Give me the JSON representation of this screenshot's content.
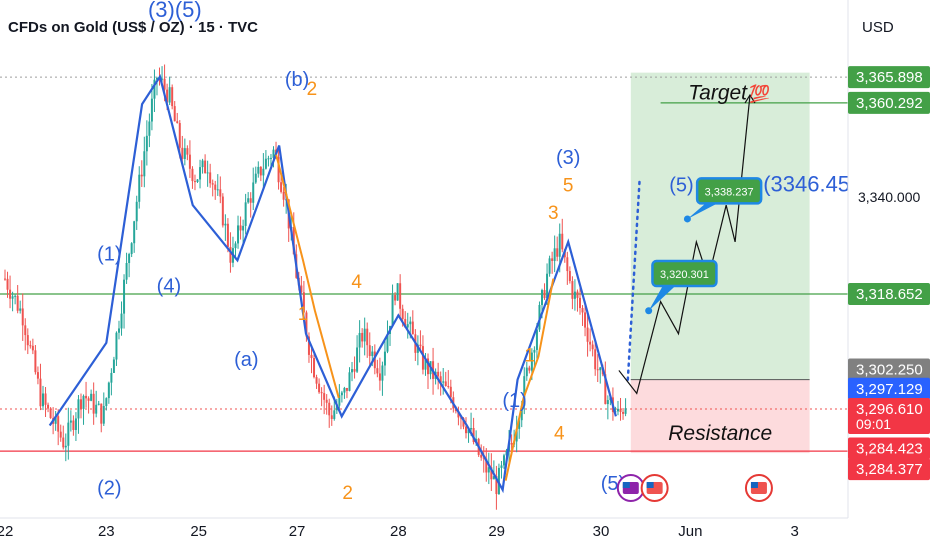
{
  "header": {
    "title": "CFDs on Gold (US$ / OZ) · 15 · TVC",
    "currency": "USD"
  },
  "chart_data": {
    "type": "candlestick",
    "title": "CFDs on Gold (US$ / OZ) · 15 · TVC",
    "ylim": [
      3276,
      3375
    ],
    "x_ticks": [
      "22",
      "23",
      "25",
      "27",
      "28",
      "29",
      "30",
      "Jun",
      "3"
    ],
    "y_ticks": [
      "3,340.000"
    ],
    "price_path": [
      [
        0,
        3322
      ],
      [
        0.6,
        3314
      ],
      [
        1.2,
        3296
      ],
      [
        2.0,
        3286
      ],
      [
        2.6,
        3297
      ],
      [
        3.3,
        3292
      ],
      [
        3.8,
        3312
      ],
      [
        4.3,
        3334
      ],
      [
        4.8,
        3355
      ],
      [
        5.1,
        3366
      ],
      [
        5.5,
        3362
      ],
      [
        5.9,
        3350
      ],
      [
        6.4,
        3344
      ],
      [
        6.8,
        3347
      ],
      [
        7.3,
        3336
      ],
      [
        7.6,
        3326
      ],
      [
        8.1,
        3338
      ],
      [
        8.6,
        3346
      ],
      [
        9.0,
        3350
      ],
      [
        9.4,
        3340
      ],
      [
        9.8,
        3322
      ],
      [
        10.3,
        3304
      ],
      [
        10.9,
        3292
      ],
      [
        11.4,
        3297
      ],
      [
        12.0,
        3310
      ],
      [
        12.6,
        3302
      ],
      [
        13.1,
        3320
      ],
      [
        13.5,
        3312
      ],
      [
        14.0,
        3304
      ],
      [
        14.5,
        3300
      ],
      [
        15.0,
        3296
      ],
      [
        15.5,
        3290
      ],
      [
        16.0,
        3282
      ],
      [
        16.5,
        3277
      ],
      [
        17.0,
        3286
      ],
      [
        17.4,
        3298
      ],
      [
        17.8,
        3310
      ],
      [
        18.2,
        3323
      ],
      [
        18.6,
        3330
      ],
      [
        19.0,
        3320
      ],
      [
        19.4,
        3314
      ],
      [
        19.8,
        3304
      ],
      [
        20.2,
        3296
      ],
      [
        20.6,
        3292
      ],
      [
        20.9,
        3296
      ]
    ],
    "wave_path": [
      [
        1.5,
        3290
      ],
      [
        3.4,
        3308
      ],
      [
        4.6,
        3360
      ],
      [
        5.2,
        3366
      ],
      [
        6.3,
        3338
      ],
      [
        7.8,
        3326
      ],
      [
        9.2,
        3351
      ],
      [
        10.1,
        3310
      ],
      [
        11.3,
        3292
      ],
      [
        13.2,
        3314
      ],
      [
        15.5,
        3290
      ],
      [
        16.7,
        3276
      ],
      [
        17.2,
        3300
      ],
      [
        18.9,
        3330
      ],
      [
        20.5,
        3292
      ]
    ],
    "projection_path": [
      [
        20.6,
        3302
      ],
      [
        21.2,
        3297
      ],
      [
        22.0,
        3317
      ],
      [
        22.6,
        3310
      ],
      [
        23.2,
        3330
      ],
      [
        23.6,
        3322
      ],
      [
        24.2,
        3338
      ],
      [
        24.5,
        3330
      ],
      [
        25.0,
        3362
      ]
    ],
    "wave_labels_blue": [
      {
        "text": "(1)",
        "x": 3.5,
        "y": 3326
      },
      {
        "text": "(4)",
        "x": 5.5,
        "y": 3319
      },
      {
        "text": "(3)(5)",
        "x": 5.7,
        "y": 3379
      },
      {
        "text": "(b)",
        "x": 9.8,
        "y": 3364
      },
      {
        "text": "(a)",
        "x": 8.1,
        "y": 3303
      },
      {
        "text": "(1)",
        "x": 17.1,
        "y": 3294
      },
      {
        "text": "(3)",
        "x": 18.9,
        "y": 3347
      },
      {
        "text": "(5)",
        "x": 22.7,
        "y": 3341
      },
      {
        "text": "(3346.45",
        "x": 26.9,
        "y": 3341
      },
      {
        "text": "(2)",
        "x": 3.5,
        "y": 3275
      },
      {
        "text": "(5)",
        "x": 20.4,
        "y": 3276
      }
    ],
    "wave_labels_orange": [
      {
        "text": "2",
        "x": 10.3,
        "y": 3362
      },
      {
        "text": "4",
        "x": 11.8,
        "y": 3320
      },
      {
        "text": "1",
        "x": 10.0,
        "y": 3313
      },
      {
        "text": "2",
        "x": 11.5,
        "y": 3274
      },
      {
        "text": "5",
        "x": 18.9,
        "y": 3341
      },
      {
        "text": "3",
        "x": 18.4,
        "y": 3335
      },
      {
        "text": "1",
        "x": 17.6,
        "y": 3304
      },
      {
        "text": "4",
        "x": 18.6,
        "y": 3287
      }
    ],
    "levels": {
      "target": 3360.292,
      "top": 3365.898,
      "support_green": 3318.652,
      "resistance_red": 3284.423
    },
    "zones": {
      "profit": {
        "x": [
          21.0,
          27.0
        ],
        "y": [
          3300,
          3366
        ]
      },
      "loss": {
        "x": [
          21.0,
          27.0
        ],
        "y": [
          3284,
          3300
        ]
      }
    },
    "callouts": [
      {
        "text": "3,320.301",
        "x": 22.8,
        "y": 3323
      },
      {
        "text": "3,338.237",
        "x": 24.3,
        "y": 3341
      }
    ],
    "annotations": [
      {
        "text": "Target",
        "emoji": "💯",
        "x": 24.9,
        "y": 3360.6
      },
      {
        "text": "Resistance",
        "x": 24.0,
        "y": 3286.8
      }
    ],
    "price_badges": [
      {
        "text": "3,365.898",
        "color": "#43a047",
        "price": 3365.898
      },
      {
        "text": "3,360.292",
        "color": "#43a047",
        "price": 3360.292
      },
      {
        "text": "3,318.652",
        "color": "#43a047",
        "price": 3318.652
      },
      {
        "text": "3,302.250",
        "color": "#808080",
        "price": 3302.2
      },
      {
        "text": "3,297.129",
        "color": "#2962ff",
        "price": 3298.0
      },
      {
        "text": "3,296.610",
        "sub": "09:01",
        "color": "#f23645",
        "price": 3293.6
      },
      {
        "text": "3,284.423",
        "color": "#f23645",
        "price": 3285.0
      },
      {
        "text": "3,284.377",
        "color": "#f23645",
        "price": 3280.5
      }
    ],
    "colors": {
      "up": "#26a69a",
      "down": "#ef5350",
      "wave": "#2d5fd6",
      "orange": "#f7931a",
      "target_line": "#43a047",
      "resistance_line": "#f23645"
    }
  }
}
